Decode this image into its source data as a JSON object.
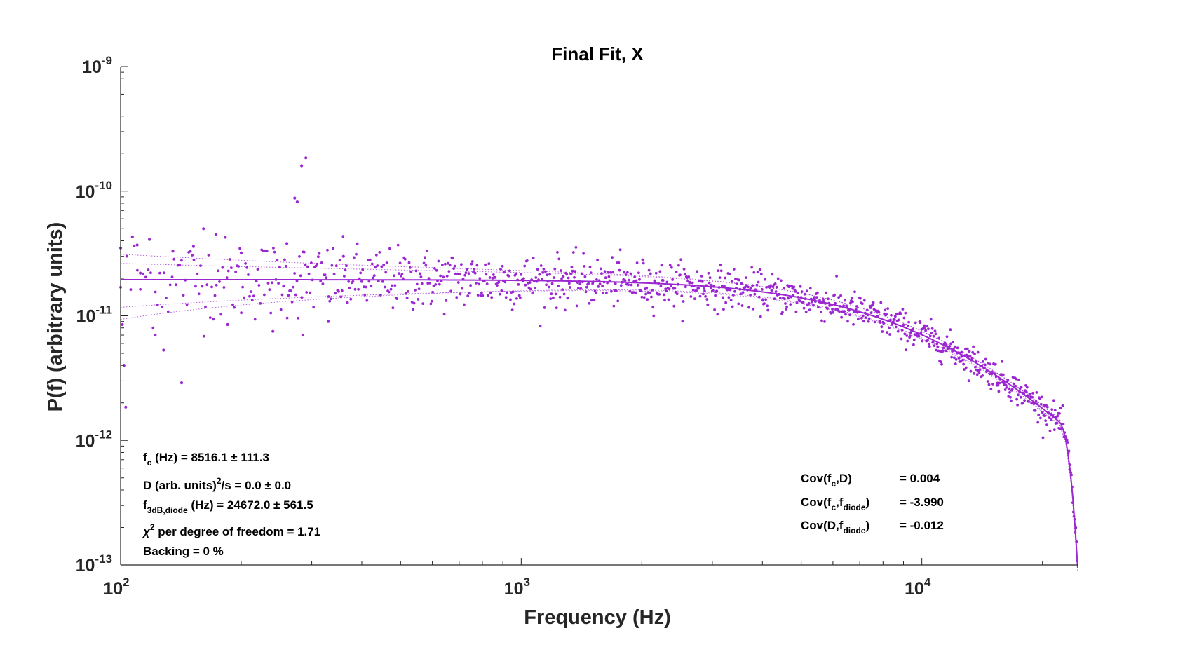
{
  "chart_data": {
    "type": "scatter",
    "title": "Final Fit, X",
    "xlabel": "Frequency (Hz)",
    "ylabel": "P(f) (arbitrary units)",
    "x_scale": "log",
    "y_scale": "log",
    "xlim": [
      100,
      24500
    ],
    "ylim": [
      1e-13,
      1e-09
    ],
    "x_ticks": [
      {
        "base": "10",
        "exp": "2",
        "value": 100
      },
      {
        "base": "10",
        "exp": "3",
        "value": 1000
      },
      {
        "base": "10",
        "exp": "4",
        "value": 10000
      }
    ],
    "y_ticks": [
      {
        "base": "10",
        "exp": "-13",
        "value": 1e-13
      },
      {
        "base": "10",
        "exp": "-12",
        "value": 1e-12
      },
      {
        "base": "10",
        "exp": "-11",
        "value": 1e-11
      },
      {
        "base": "10",
        "exp": "-10",
        "value": 1e-10
      },
      {
        "base": "10",
        "exp": "-9",
        "value": 1e-09
      }
    ],
    "grid": false,
    "color": "#9b27d1",
    "fit_parameters": {
      "fc_hz": 8516.1,
      "plateau": 1.95e-11,
      "f_diode_hz": 24672.0,
      "rolloff_hz": 24500
    },
    "outliers": [
      [
        100,
        3.5e-11
      ],
      [
        101,
        8.5e-12
      ],
      [
        102,
        4e-12
      ],
      [
        103,
        1.85e-12
      ],
      [
        107,
        4.3e-11
      ],
      [
        110,
        3.7e-11
      ],
      [
        112,
        2.2e-11
      ],
      [
        118,
        4.1e-11
      ],
      [
        122,
        7e-12
      ],
      [
        128,
        5.3e-12
      ],
      [
        135,
        3.3e-11
      ],
      [
        142,
        2.9e-12
      ],
      [
        152,
        3.6e-11
      ],
      [
        161,
        5e-11
      ],
      [
        173,
        4.5e-11
      ],
      [
        185,
        8.5e-12
      ],
      [
        200,
        3.2e-11
      ],
      [
        240,
        7.5e-12
      ],
      [
        260,
        3.8e-11
      ],
      [
        272,
        8.8e-11
      ],
      [
        276,
        8.2e-11
      ],
      [
        283,
        1.6e-10
      ],
      [
        290,
        1.85e-10
      ],
      [
        285,
        7e-12
      ],
      [
        360,
        3e-11
      ],
      [
        330,
        9e-12
      ]
    ],
    "annotations_left": [
      {
        "parts": [
          {
            "t": "f"
          },
          {
            "t": "c",
            "sub": true
          },
          {
            "t": " (Hz) = 8516.1 ± 111.3"
          }
        ]
      },
      {
        "parts": [
          {
            "t": "D (arb. units)"
          },
          {
            "t": "2",
            "sup": true
          },
          {
            "t": "/s = 0.0 ± 0.0"
          }
        ]
      },
      {
        "parts": [
          {
            "t": "f"
          },
          {
            "t": "3dB,diode",
            "sub": true
          },
          {
            "t": " (Hz) = 24672.0 ± 561.5"
          }
        ]
      },
      {
        "parts": [
          {
            "t": "χ",
            "italic": true
          },
          {
            "t": "2",
            "sup": true
          },
          {
            "t": " per degree of freedom = 1.71"
          }
        ]
      },
      {
        "parts": [
          {
            "t": "Backing  = 0 %"
          }
        ]
      }
    ],
    "annotations_right": [
      {
        "label": [
          {
            "t": "Cov(f"
          },
          {
            "t": "c",
            "sub": true
          },
          {
            "t": ",D)"
          }
        ],
        "value": "= 0.004"
      },
      {
        "label": [
          {
            "t": "Cov(f"
          },
          {
            "t": "c",
            "sub": true
          },
          {
            "t": ",f"
          },
          {
            "t": "diode",
            "sub": true
          },
          {
            "t": ")"
          }
        ],
        "value": "= -3.990"
      },
      {
        "label": [
          {
            "t": "Cov(D,f"
          },
          {
            "t": "diode",
            "sub": true
          },
          {
            "t": ")"
          }
        ],
        "value": "= -0.012"
      }
    ]
  }
}
